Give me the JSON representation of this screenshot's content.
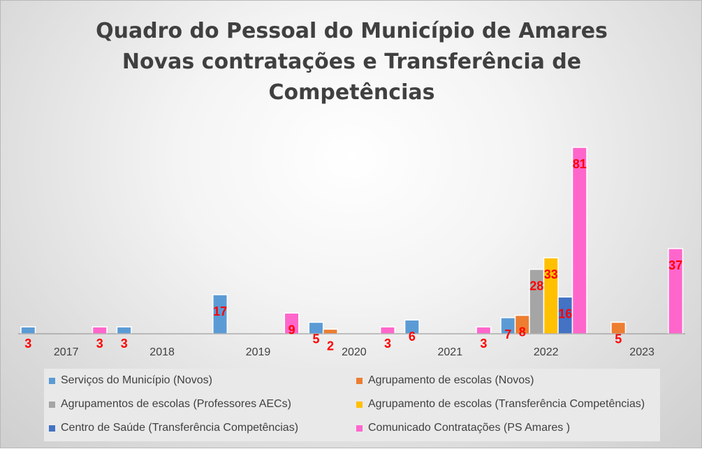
{
  "chart_data": {
    "type": "bar",
    "title_lines": [
      "Quadro do Pessoal do Município de Amares",
      "Novas contratações e Transferência de",
      "Competências"
    ],
    "categories": [
      "2017",
      "2018",
      "2019",
      "2020",
      "2021",
      "2022",
      "2023"
    ],
    "series": [
      {
        "name": "Serviços do Município (Novos)",
        "color": "#5B9BD5",
        "values": [
          3,
          3,
          17,
          5,
          6,
          7,
          null
        ]
      },
      {
        "name": "Agrupamento de escolas (Novos)",
        "color": "#ED7D31",
        "values": [
          null,
          null,
          null,
          2,
          null,
          8,
          5
        ]
      },
      {
        "name": "Agrupamentos de escolas (Professores AECs)",
        "color": "#A5A5A5",
        "values": [
          null,
          null,
          null,
          null,
          null,
          28,
          null
        ]
      },
      {
        "name": "Agrupamento de escolas (Transferência Competências)",
        "color": "#FFC000",
        "values": [
          null,
          null,
          null,
          null,
          null,
          33,
          null
        ]
      },
      {
        "name": "Centro de Saúde (Transferência Competências)",
        "color": "#4472C4",
        "values": [
          null,
          null,
          null,
          null,
          null,
          16,
          null
        ]
      },
      {
        "name": "Comunicado Contratações (PS Amares )",
        "color": "#FF66CC",
        "values": [
          3,
          null,
          9,
          3,
          3,
          81,
          37
        ]
      }
    ],
    "data_label_color": "#FF0000",
    "ylim": [
      0,
      81
    ],
    "grid": false,
    "legend_position": "bottom"
  }
}
